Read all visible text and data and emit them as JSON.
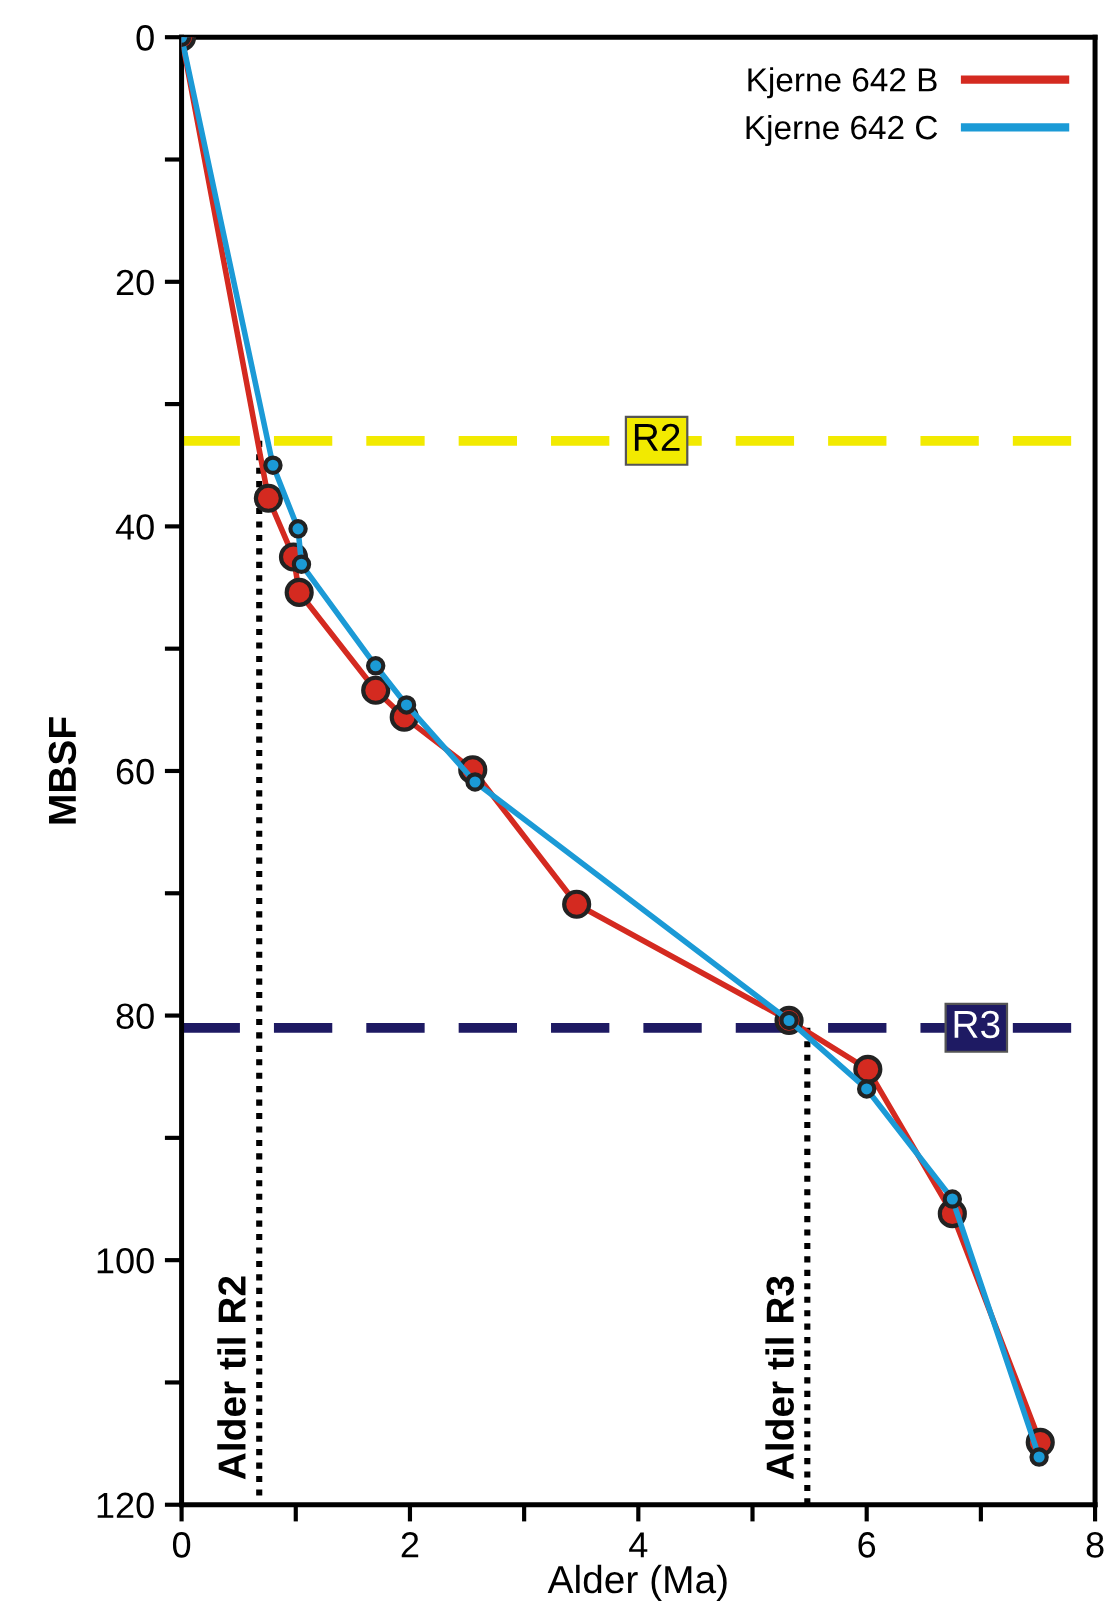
{
  "chart_data": {
    "type": "line",
    "xlabel": "Alder (Ma)",
    "ylabel": "MBSF",
    "xlim": [
      0,
      8
    ],
    "xticks": [
      0,
      {
        "value": 1,
        "label": null
      },
      2,
      {
        "value": 3,
        "label": null
      },
      4,
      {
        "value": 5,
        "label": null
      },
      6,
      {
        "value": 7,
        "label": null
      },
      8
    ],
    "ylim": [
      120,
      0
    ],
    "yticks": [
      0,
      {
        "value": 10,
        "label": null
      },
      20,
      {
        "value": 30,
        "label": null
      },
      40,
      {
        "value": 50,
        "label": null
      },
      60,
      {
        "value": 70,
        "label": null
      },
      80,
      {
        "value": 90,
        "label": null
      },
      100,
      {
        "value": 110,
        "label": null
      },
      120
    ],
    "marker": "circle",
    "legend": "top right",
    "grid": false,
    "series": [
      {
        "name": "Kjerne 642 B",
        "color": "#d42a20",
        "x": [
          0,
          0.76,
          0.98,
          1.03,
          1.7,
          1.95,
          2.55,
          3.46,
          5.32,
          6.01,
          6.75,
          7.52
        ],
        "values": [
          0,
          37.7,
          42.5,
          45.4,
          53.4,
          55.6,
          59.9,
          70.9,
          80.4,
          84.4,
          96.2,
          114.9
        ]
      },
      {
        "name": "Kjerne 642 C",
        "color": "#1b9ad6",
        "x": [
          0,
          0.8,
          1.02,
          1.05,
          1.7,
          1.97,
          2.57,
          5.32,
          6.0,
          6.75,
          7.51
        ],
        "values": [
          0,
          35.0,
          40.2,
          43.1,
          51.4,
          54.6,
          60.9,
          80.4,
          86.0,
          95.0,
          116.1
        ]
      }
    ],
    "ref_lines": [
      {
        "axis": "y",
        "value": 33,
        "label": "R2",
        "color": "#f2ea00",
        "line_style": "dashed"
      },
      {
        "axis": "y",
        "value": 81,
        "label": "R3",
        "color": "#1e1a63",
        "line_style": "dashed"
      },
      {
        "axis": "x",
        "value": 0.68,
        "label": "Alder til R2",
        "color": "#000000",
        "line_style": "dotted"
      },
      {
        "axis": "x",
        "value": 5.48,
        "label": "Alder til R3",
        "color": "#000000",
        "line_style": "dotted"
      }
    ]
  }
}
